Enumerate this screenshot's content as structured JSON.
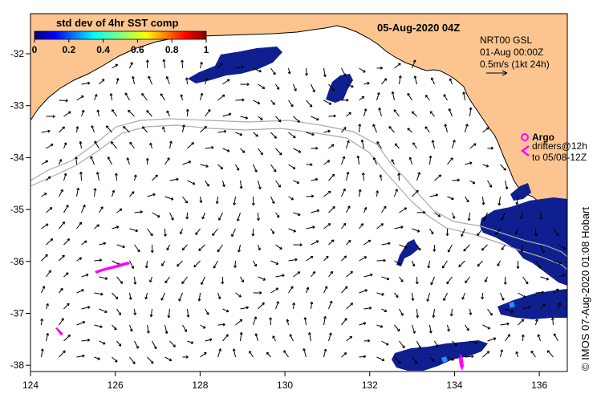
{
  "map": {
    "date_label": "05-Aug-2020 04Z",
    "colorbar": {
      "title": "std dev of 4hr SST comp",
      "ticks": [
        "0",
        "0.2",
        "0.4",
        "0.6",
        "0.8",
        "1"
      ]
    },
    "info": {
      "line1": "NRT00 GSL",
      "line2": "01-Aug 00:00Z",
      "line3": "0.5m/s (1kt 24h)"
    },
    "legend": {
      "argo": "Argo",
      "drifters1": "drifters@12h",
      "drifters2": "to 05/08-12Z"
    },
    "credit": "© IMOS 07-Aug-2020 01:08 Hobart",
    "x_ticks": [
      "124",
      "126",
      "128",
      "130",
      "132",
      "134",
      "136"
    ],
    "y_ticks": [
      "-32",
      "-33",
      "-34",
      "-35",
      "-36",
      "-37",
      "-38"
    ],
    "colors": {
      "land": "#fcc58f",
      "argo": "#ff00ff",
      "sst_dark": "#0f1f8f",
      "contour": "#aaaaaa"
    }
  }
}
